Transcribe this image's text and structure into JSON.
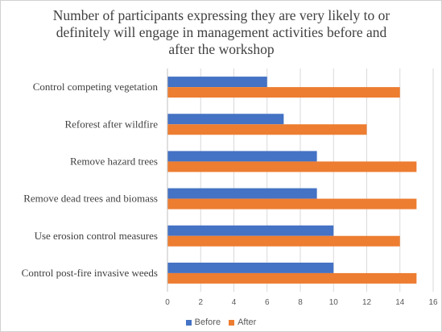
{
  "chart_data": {
    "type": "bar",
    "orientation": "horizontal",
    "title_lines": [
      "Number of participants expressing they are very likely to or",
      "definitely will engage in management activities before and",
      "after the workshop"
    ],
    "categories": [
      "Control competing vegetation",
      "Reforest after wildfire",
      "Remove hazard trees",
      "Remove dead trees and biomass",
      "Use erosion control measures",
      "Control post-fire invasive weeds"
    ],
    "series": [
      {
        "name": "Before",
        "color": "#4472c4",
        "values": [
          6,
          7,
          9,
          9,
          10,
          10
        ]
      },
      {
        "name": "After",
        "color": "#ed7d31",
        "values": [
          14,
          12,
          15,
          15,
          14,
          15
        ]
      }
    ],
    "xlim": [
      0,
      16
    ],
    "xticks": [
      0,
      2,
      4,
      6,
      8,
      10,
      12,
      14,
      16
    ],
    "grid": "vertical",
    "legend_position": "bottom"
  }
}
